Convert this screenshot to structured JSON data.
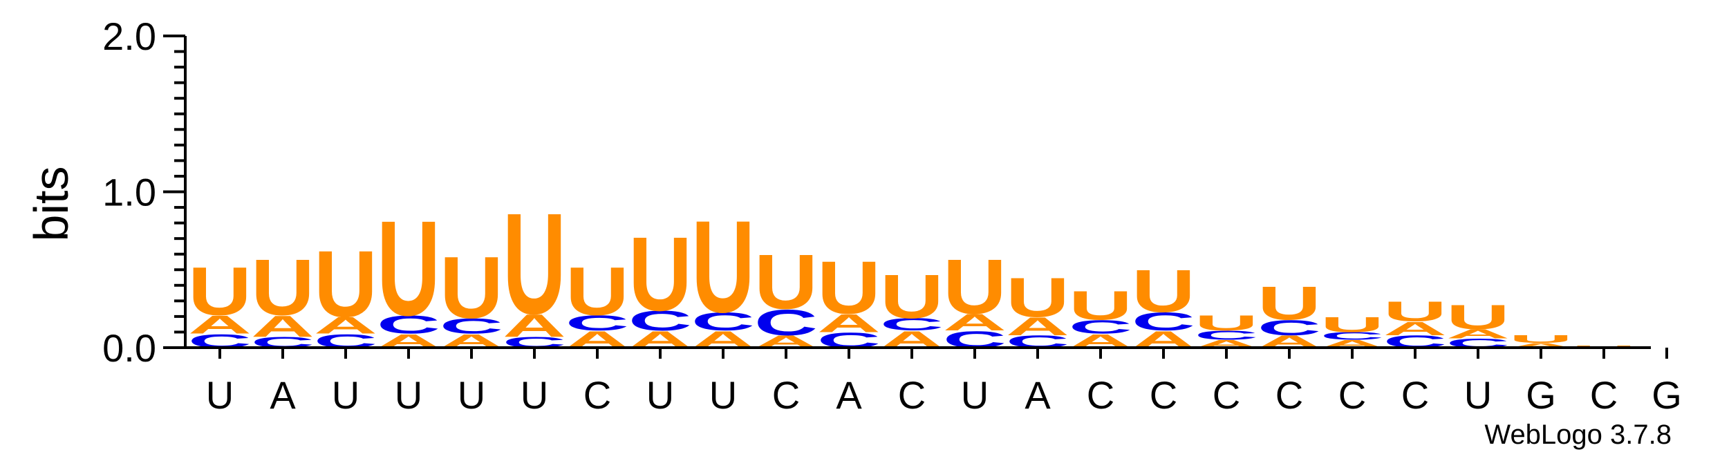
{
  "chart_data": {
    "type": "sequence-logo",
    "ylabel": "bits",
    "ylim": [
      0,
      2.0
    ],
    "yticks": [
      {
        "value": 0.0,
        "label": "0.0"
      },
      {
        "value": 1.0,
        "label": "1.0"
      },
      {
        "value": 2.0,
        "label": "2.0"
      }
    ],
    "minor_tick_step": 0.1,
    "colors": {
      "A": "#FF8C00",
      "U": "#FF8C00",
      "C": "#0000EE",
      "G": "#0000EE"
    },
    "columns": [
      {
        "label": "U",
        "stack": [
          {
            "letter": "C",
            "bits": 0.09
          },
          {
            "letter": "A",
            "bits": 0.12
          },
          {
            "letter": "U",
            "bits": 0.32
          }
        ]
      },
      {
        "label": "A",
        "stack": [
          {
            "letter": "C",
            "bits": 0.07
          },
          {
            "letter": "A",
            "bits": 0.14
          },
          {
            "letter": "U",
            "bits": 0.37
          }
        ]
      },
      {
        "label": "U",
        "stack": [
          {
            "letter": "C",
            "bits": 0.09
          },
          {
            "letter": "A",
            "bits": 0.11
          },
          {
            "letter": "U",
            "bits": 0.44
          }
        ]
      },
      {
        "label": "U",
        "stack": [
          {
            "letter": "A",
            "bits": 0.09
          },
          {
            "letter": "C",
            "bits": 0.12
          },
          {
            "letter": "U",
            "bits": 0.63
          }
        ]
      },
      {
        "label": "U",
        "stack": [
          {
            "letter": "A",
            "bits": 0.09
          },
          {
            "letter": "C",
            "bits": 0.1
          },
          {
            "letter": "U",
            "bits": 0.41
          }
        ]
      },
      {
        "label": "U",
        "stack": [
          {
            "letter": "C",
            "bits": 0.07
          },
          {
            "letter": "A",
            "bits": 0.15
          },
          {
            "letter": "U",
            "bits": 0.67
          }
        ]
      },
      {
        "label": "C",
        "stack": [
          {
            "letter": "A",
            "bits": 0.11
          },
          {
            "letter": "C",
            "bits": 0.1
          },
          {
            "letter": "U",
            "bits": 0.32
          }
        ]
      },
      {
        "label": "U",
        "stack": [
          {
            "letter": "A",
            "bits": 0.11
          },
          {
            "letter": "C",
            "bits": 0.13
          },
          {
            "letter": "U",
            "bits": 0.49
          }
        ]
      },
      {
        "label": "U",
        "stack": [
          {
            "letter": "A",
            "bits": 0.11
          },
          {
            "letter": "C",
            "bits": 0.12
          },
          {
            "letter": "U",
            "bits": 0.61
          }
        ]
      },
      {
        "label": "C",
        "stack": [
          {
            "letter": "A",
            "bits": 0.08
          },
          {
            "letter": "C",
            "bits": 0.17
          },
          {
            "letter": "U",
            "bits": 0.36
          }
        ]
      },
      {
        "label": "A",
        "stack": [
          {
            "letter": "C",
            "bits": 0.1
          },
          {
            "letter": "A",
            "bits": 0.12
          },
          {
            "letter": "U",
            "bits": 0.35
          }
        ]
      },
      {
        "label": "C",
        "stack": [
          {
            "letter": "A",
            "bits": 0.11
          },
          {
            "letter": "C",
            "bits": 0.08
          },
          {
            "letter": "U",
            "bits": 0.29
          }
        ]
      },
      {
        "label": "U",
        "stack": [
          {
            "letter": "C",
            "bits": 0.11
          },
          {
            "letter": "A",
            "bits": 0.11
          },
          {
            "letter": "U",
            "bits": 0.36
          }
        ]
      },
      {
        "label": "A",
        "stack": [
          {
            "letter": "C",
            "bits": 0.08
          },
          {
            "letter": "A",
            "bits": 0.12
          },
          {
            "letter": "U",
            "bits": 0.26
          }
        ]
      },
      {
        "label": "C",
        "stack": [
          {
            "letter": "A",
            "bits": 0.09
          },
          {
            "letter": "C",
            "bits": 0.09
          },
          {
            "letter": "U",
            "bits": 0.19
          }
        ]
      },
      {
        "label": "C",
        "stack": [
          {
            "letter": "A",
            "bits": 0.11
          },
          {
            "letter": "C",
            "bits": 0.12
          },
          {
            "letter": "U",
            "bits": 0.28
          }
        ]
      },
      {
        "label": "C",
        "stack": [
          {
            "letter": "A",
            "bits": 0.05
          },
          {
            "letter": "C",
            "bits": 0.06
          },
          {
            "letter": "U",
            "bits": 0.1
          }
        ]
      },
      {
        "label": "C",
        "stack": [
          {
            "letter": "A",
            "bits": 0.08
          },
          {
            "letter": "C",
            "bits": 0.1
          },
          {
            "letter": "U",
            "bits": 0.22
          }
        ]
      },
      {
        "label": "C",
        "stack": [
          {
            "letter": "A",
            "bits": 0.05
          },
          {
            "letter": "C",
            "bits": 0.05
          },
          {
            "letter": "U",
            "bits": 0.1
          }
        ]
      },
      {
        "label": "C",
        "stack": [
          {
            "letter": "C",
            "bits": 0.08
          },
          {
            "letter": "A",
            "bits": 0.09
          },
          {
            "letter": "U",
            "bits": 0.13
          }
        ]
      },
      {
        "label": "U",
        "stack": [
          {
            "letter": "C",
            "bits": 0.06
          },
          {
            "letter": "A",
            "bits": 0.06
          },
          {
            "letter": "U",
            "bits": 0.16
          }
        ]
      },
      {
        "label": "G",
        "stack": [
          {
            "letter": "A",
            "bits": 0.03
          },
          {
            "letter": "U",
            "bits": 0.05
          }
        ]
      },
      {
        "label": "C",
        "stack": [
          {
            "letter": "A",
            "bits": 0.005
          },
          {
            "letter": "U",
            "bits": 0.008
          }
        ]
      },
      {
        "label": "G",
        "stack": []
      }
    ]
  },
  "credit": "WebLogo 3.7.8"
}
